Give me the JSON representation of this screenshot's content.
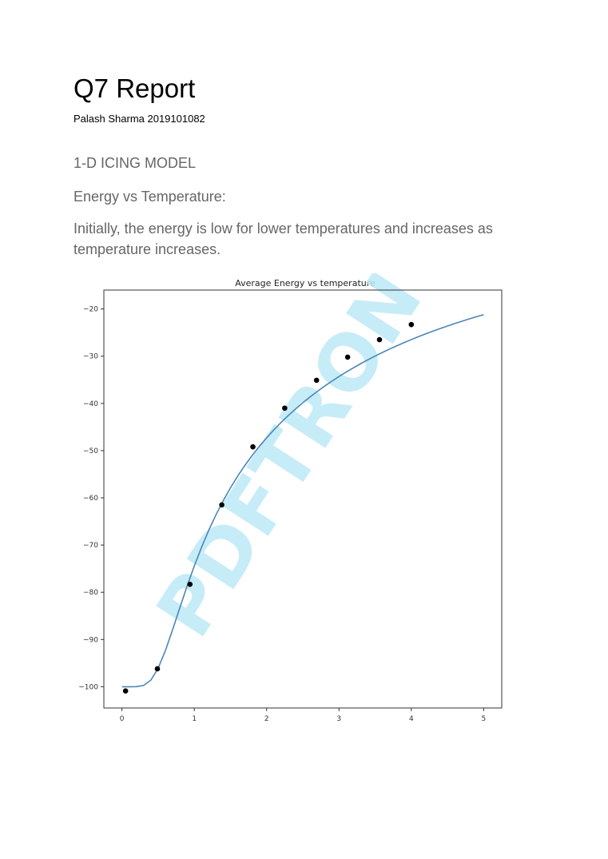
{
  "document": {
    "title": "Q7 Report",
    "author": "Palash Sharma 2019101082",
    "section_heading": "1-D ICING MODEL",
    "subheading": "Energy vs Temperature:",
    "paragraph": "Initially, the energy is low for lower temperatures and increases as temperature increases."
  },
  "watermark": "PDFTRON",
  "colors": {
    "curve": "#4a86b8",
    "points": "#000000",
    "watermark": "#bde9f7",
    "text_gray": "#666666"
  },
  "chart_data": {
    "type": "scatter",
    "title": "Average Energy vs temperature",
    "xlabel": "",
    "ylabel": "",
    "xlim": [
      -0.25,
      5.25
    ],
    "ylim": [
      -104.5,
      -16
    ],
    "xticks": [
      0,
      1,
      2,
      3,
      4,
      5
    ],
    "yticks": [
      -20,
      -30,
      -40,
      -50,
      -60,
      -70,
      -80,
      -90,
      -100
    ],
    "grid": false,
    "series": [
      {
        "kind": "points",
        "x": [
          0.05,
          0.49,
          0.94,
          1.38,
          1.81,
          2.25,
          2.69,
          3.12,
          3.56,
          4.0
        ],
        "y": [
          -100.9,
          -96.2,
          -78.3,
          -61.5,
          -49.2,
          -41.0,
          -35.1,
          -30.2,
          -26.5,
          -23.3
        ]
      },
      {
        "kind": "curve",
        "x": [
          0.0,
          0.1,
          0.2,
          0.3,
          0.4,
          0.5,
          0.6,
          0.7,
          0.8,
          0.9,
          1.0,
          1.1,
          1.2,
          1.3,
          1.4,
          1.5,
          1.6,
          1.7,
          1.8,
          1.9,
          2.0,
          2.1,
          2.2,
          2.3,
          2.4,
          2.5,
          2.6,
          2.7,
          2.8,
          2.9,
          3.0,
          3.1,
          3.2,
          3.3,
          3.4,
          3.5,
          3.6,
          3.7,
          3.8,
          3.9,
          4.0,
          4.1,
          4.2,
          4.3,
          4.4,
          4.5,
          4.6,
          4.7,
          4.8,
          4.9,
          5.0
        ],
        "y": [
          -100.0,
          -100.0,
          -99.99,
          -99.72,
          -98.6,
          -96.1,
          -92.38,
          -87.94,
          -83.28,
          -78.71,
          -74.42,
          -70.47,
          -66.86,
          -63.58,
          -60.6,
          -57.88,
          -55.4,
          -53.12,
          -51.03,
          -49.09,
          -47.29,
          -45.61,
          -44.04,
          -42.56,
          -41.18,
          -39.87,
          -38.64,
          -37.47,
          -36.36,
          -35.31,
          -34.31,
          -33.36,
          -32.46,
          -31.59,
          -30.76,
          -29.97,
          -29.22,
          -28.49,
          -27.8,
          -27.13,
          -26.48,
          -25.86,
          -25.27,
          -24.69,
          -24.14,
          -23.61,
          -23.09,
          -22.6,
          -22.12,
          -21.65,
          -21.2
        ]
      }
    ]
  }
}
